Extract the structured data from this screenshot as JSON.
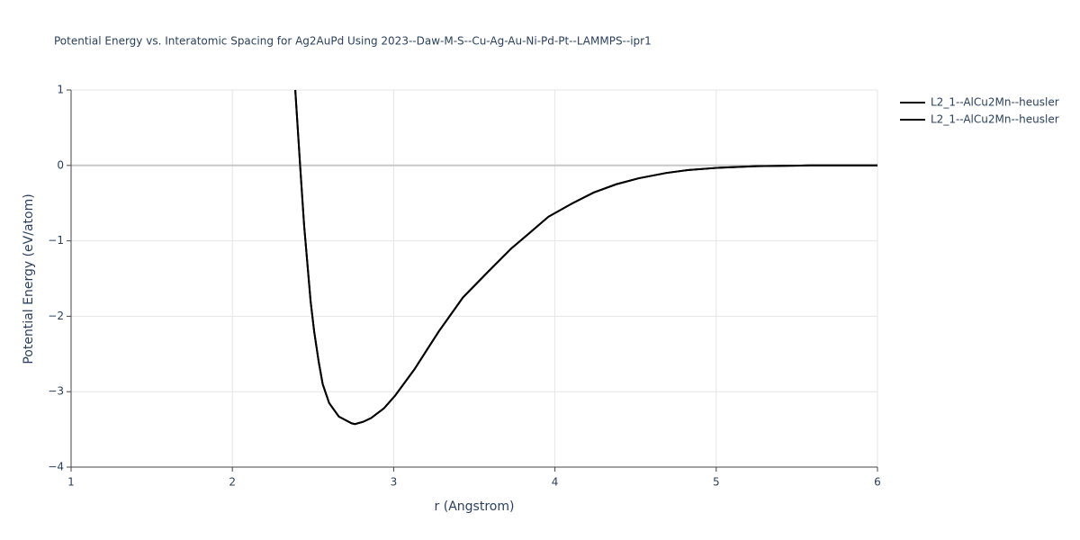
{
  "chart_data": {
    "type": "line",
    "title": "Potential Energy vs. Interatomic Spacing for Ag2AuPd Using 2023--Daw-M-S--Cu-Ag-Au-Ni-Pd-Pt--LAMMPS--ipr1",
    "x_label": "r (Angstrom)",
    "y_label": "Potential Energy (eV/atom)",
    "x": [
      2.39,
      2.42,
      2.445,
      2.485,
      2.507,
      2.535,
      2.56,
      2.6,
      2.66,
      2.74,
      2.76,
      2.81,
      2.86,
      2.94,
      3.01,
      3.13,
      3.28,
      3.43,
      3.59,
      3.73,
      3.84,
      3.96,
      4.11,
      4.24,
      4.38,
      4.52,
      4.69,
      4.83,
      5.02,
      5.25,
      5.58,
      6.0
    ],
    "series": [
      {
        "name": "L2_1--AlCu2Mn--heusler",
        "color": "#000000",
        "values": [
          1,
          0,
          -0.8,
          -1.8,
          -2.2,
          -2.6,
          -2.9,
          -3.15,
          -3.33,
          -3.42,
          -3.43,
          -3.4,
          -3.35,
          -3.22,
          -3.05,
          -2.7,
          -2.2,
          -1.75,
          -1.4,
          -1.1,
          -0.9,
          -0.68,
          -0.5,
          -0.36,
          -0.25,
          -0.17,
          -0.1,
          -0.06,
          -0.03,
          -0.01,
          0,
          0
        ]
      },
      {
        "name": "L2_1--AlCu2Mn--heusler",
        "color": "#000000",
        "values": [
          1,
          0,
          -0.8,
          -1.8,
          -2.2,
          -2.6,
          -2.9,
          -3.15,
          -3.33,
          -3.42,
          -3.43,
          -3.4,
          -3.35,
          -3.22,
          -3.05,
          -2.7,
          -2.2,
          -1.75,
          -1.4,
          -1.1,
          -0.9,
          -0.68,
          -0.5,
          -0.36,
          -0.25,
          -0.17,
          -0.1,
          -0.06,
          -0.03,
          -0.01,
          0,
          0
        ]
      }
    ],
    "xlim": [
      1,
      6
    ],
    "xticks": [
      1,
      2,
      3,
      4,
      5,
      6
    ],
    "ylim": [
      -4,
      1
    ],
    "yticks": [
      {
        "value": -4,
        "label": "−4"
      },
      {
        "value": -3,
        "label": "−3"
      },
      {
        "value": -2,
        "label": "−2"
      },
      {
        "value": -1,
        "label": "−1"
      },
      0,
      1
    ],
    "grid": true,
    "legend": "top-right"
  }
}
